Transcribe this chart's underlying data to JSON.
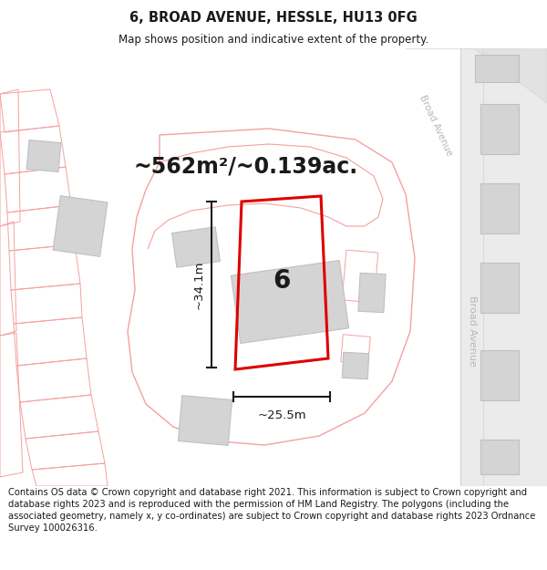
{
  "title": "6, BROAD AVENUE, HESSLE, HU13 0FG",
  "subtitle": "Map shows position and indicative extent of the property.",
  "area_label": "~562m²/~0.139ac.",
  "number_label": "6",
  "dim_width": "~25.5m",
  "dim_height": "~34.1m",
  "street_name_top": "Broad Avenue",
  "street_name_mid": "Broad Avenue",
  "footer_text": "Contains OS data © Crown copyright and database right 2021. This information is subject to Crown copyright and database rights 2023 and is reproduced with the permission of HM Land Registry. The polygons (including the associated geometry, namely x, y co-ordinates) are subject to Crown copyright and database rights 2023 Ordnance Survey 100026316.",
  "map_bg": "#f9f9f9",
  "building_fill": "#d4d4d4",
  "building_outline": "#c0c0c0",
  "pink_line_color": "#f5a0a0",
  "red_outline_color": "#dd0000",
  "dim_line_color": "#1a1a1a",
  "text_color": "#1a1a1a",
  "street_text_color": "#b8b8b8",
  "title_fontsize": 10.5,
  "subtitle_fontsize": 8.5,
  "area_fontsize": 17,
  "number_fontsize": 20,
  "footer_fontsize": 7.2
}
